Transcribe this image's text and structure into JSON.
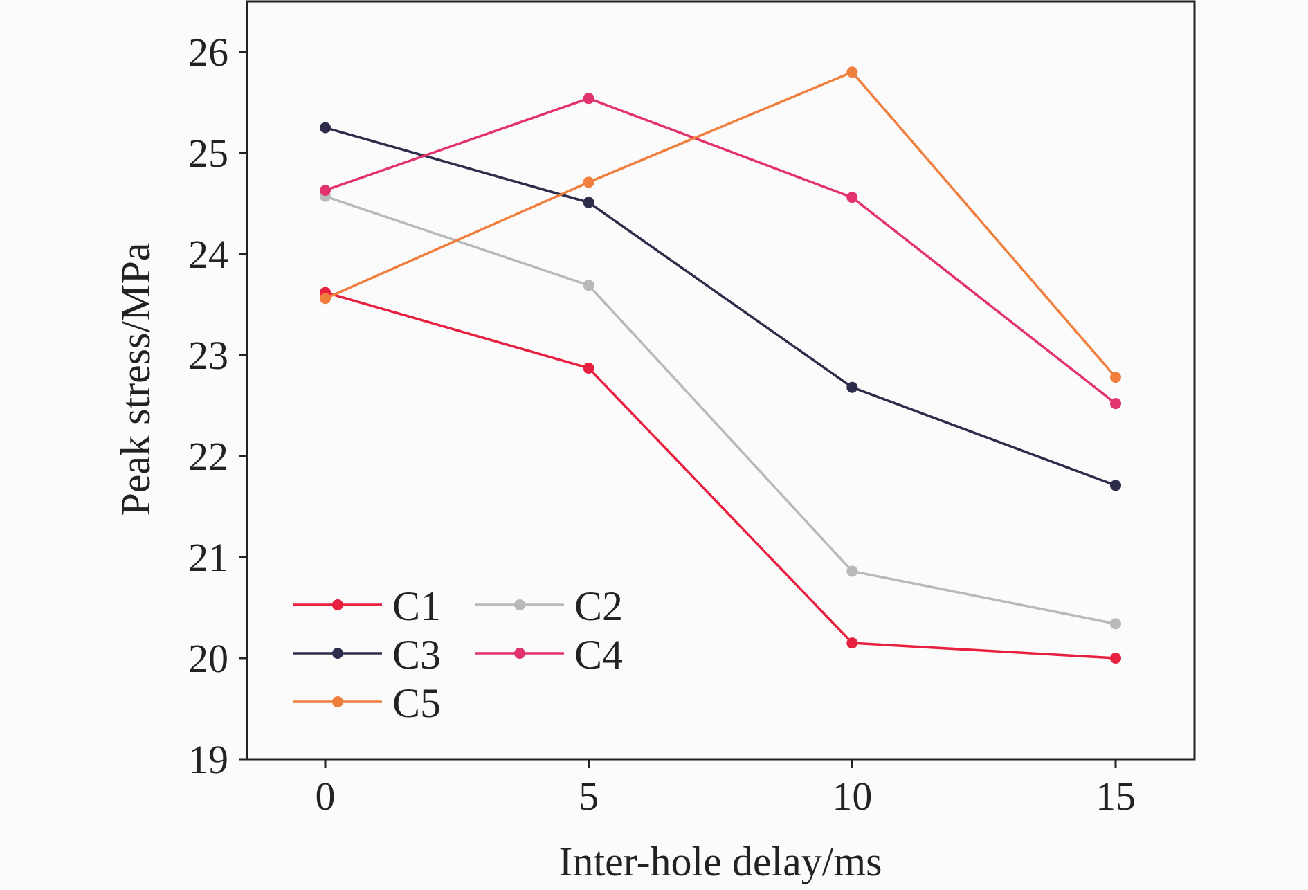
{
  "chart_data": {
    "type": "line",
    "title": "",
    "xlabel": "Inter-hole delay/ms",
    "ylabel": "Peak stress/MPa",
    "x": [
      0,
      5,
      10,
      15
    ],
    "xlim": [
      -1.5,
      16.5
    ],
    "ylim": [
      19,
      26.5
    ],
    "xticks": [
      "0",
      "5",
      "10",
      "15"
    ],
    "yticks": [
      "19",
      "20",
      "21",
      "22",
      "23",
      "24",
      "25",
      "26"
    ],
    "grid": false,
    "legend_position": "bottom-left",
    "series": [
      {
        "name": "C1",
        "color": "#e8203f",
        "values": [
          23.62,
          22.87,
          20.15,
          20.0
        ]
      },
      {
        "name": "C2",
        "color": "#b9b9b9",
        "values": [
          24.57,
          23.69,
          20.86,
          20.34
        ]
      },
      {
        "name": "C3",
        "color": "#2d2c4a",
        "values": [
          25.25,
          24.51,
          22.68,
          21.71
        ]
      },
      {
        "name": "C4",
        "color": "#e2336c",
        "values": [
          24.63,
          25.54,
          24.56,
          22.52
        ]
      },
      {
        "name": "C5",
        "color": "#f07e3c",
        "values": [
          23.56,
          24.71,
          25.8,
          22.78
        ]
      }
    ]
  }
}
